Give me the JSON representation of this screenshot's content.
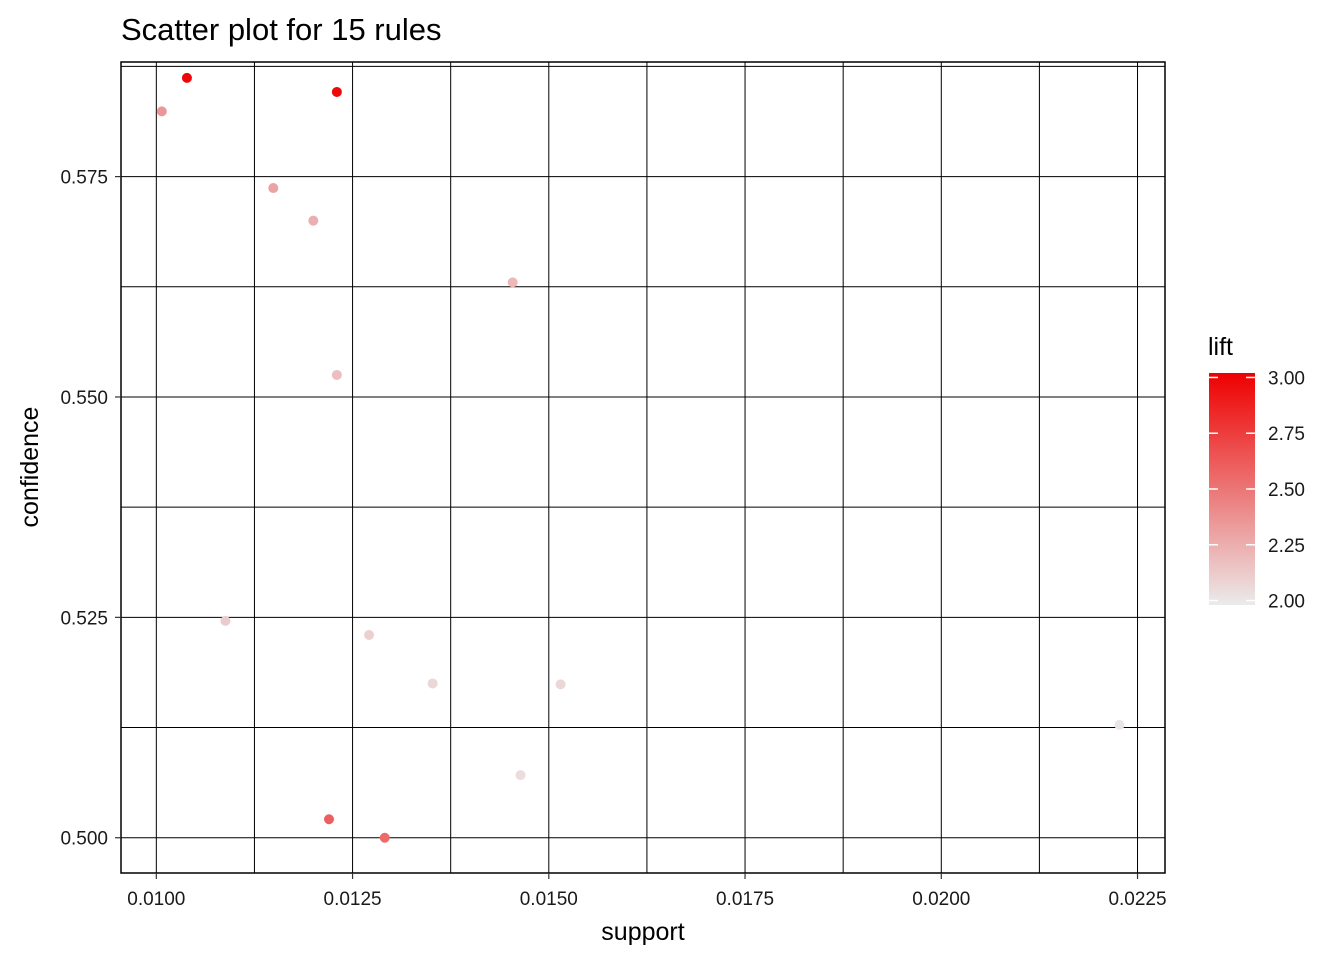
{
  "chart_data": {
    "type": "scatter",
    "title": "Scatter plot for 15 rules",
    "xlabel": "support",
    "ylabel": "confidence",
    "xlim": [
      0.00955,
      0.02285
    ],
    "ylim": [
      0.496,
      0.588
    ],
    "x_ticks": [
      0.01,
      0.0125,
      0.015,
      0.0175,
      0.02,
      0.0225
    ],
    "x_tick_labels": [
      "0.0100",
      "0.0125",
      "0.0150",
      "0.0175",
      "0.0200",
      "0.0225"
    ],
    "y_ticks": [
      0.5,
      0.525,
      0.55,
      0.575
    ],
    "y_tick_labels": [
      "0.500",
      "0.525",
      "0.550",
      "0.575"
    ],
    "grid": true,
    "color_scale": {
      "name": "lift",
      "min": 1.98,
      "max": 3.02,
      "low_color": "#ebebeb",
      "high_color": "#ee0000",
      "ticks": [
        2.0,
        2.25,
        2.5,
        2.75,
        3.0
      ],
      "tick_labels": [
        "2.00",
        "2.25",
        "2.50",
        "2.75",
        "3.00"
      ],
      "legend_position": "right"
    },
    "points": [
      {
        "support": 0.01039,
        "confidence": 0.5862,
        "lift": 3.0
      },
      {
        "support": 0.0123,
        "confidence": 0.5846,
        "lift": 2.98
      },
      {
        "support": 0.01007,
        "confidence": 0.5824,
        "lift": 2.35
      },
      {
        "support": 0.01149,
        "confidence": 0.5737,
        "lift": 2.3
      },
      {
        "support": 0.012,
        "confidence": 0.57,
        "lift": 2.25
      },
      {
        "support": 0.01454,
        "confidence": 0.563,
        "lift": 2.2
      },
      {
        "support": 0.0123,
        "confidence": 0.5525,
        "lift": 2.18
      },
      {
        "support": 0.01088,
        "confidence": 0.5246,
        "lift": 2.12
      },
      {
        "support": 0.01271,
        "confidence": 0.523,
        "lift": 2.1
      },
      {
        "support": 0.01352,
        "confidence": 0.5175,
        "lift": 2.07
      },
      {
        "support": 0.01515,
        "confidence": 0.5174,
        "lift": 2.07
      },
      {
        "support": 0.02227,
        "confidence": 0.5128,
        "lift": 2.0
      },
      {
        "support": 0.01464,
        "confidence": 0.5071,
        "lift": 2.04
      },
      {
        "support": 0.0122,
        "confidence": 0.5021,
        "lift": 2.6
      },
      {
        "support": 0.01291,
        "confidence": 0.5,
        "lift": 2.55
      }
    ]
  }
}
